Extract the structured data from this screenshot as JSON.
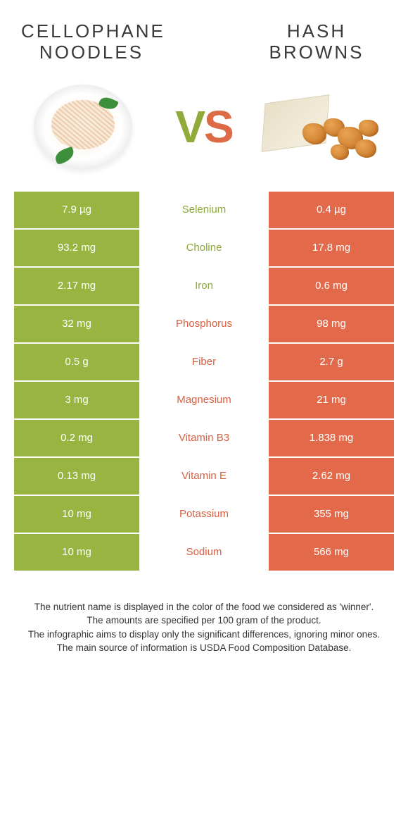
{
  "colors": {
    "left": "#99b441",
    "right": "#e2694a",
    "left_text": "#8ca838",
    "right_text": "#d85f41"
  },
  "food_left": "Cellophane noodles",
  "food_right": "Hash browns",
  "vs": "VS",
  "rows": [
    {
      "nutrient": "Selenium",
      "left": "7.9 µg",
      "right": "0.4 µg",
      "winner": "left"
    },
    {
      "nutrient": "Choline",
      "left": "93.2 mg",
      "right": "17.8 mg",
      "winner": "left"
    },
    {
      "nutrient": "Iron",
      "left": "2.17 mg",
      "right": "0.6 mg",
      "winner": "left"
    },
    {
      "nutrient": "Phosphorus",
      "left": "32 mg",
      "right": "98 mg",
      "winner": "right"
    },
    {
      "nutrient": "Fiber",
      "left": "0.5 g",
      "right": "2.7 g",
      "winner": "right"
    },
    {
      "nutrient": "Magnesium",
      "left": "3 mg",
      "right": "21 mg",
      "winner": "right"
    },
    {
      "nutrient": "Vitamin B3",
      "left": "0.2 mg",
      "right": "1.838 mg",
      "winner": "right"
    },
    {
      "nutrient": "Vitamin E",
      "left": "0.13 mg",
      "right": "2.62 mg",
      "winner": "right"
    },
    {
      "nutrient": "Potassium",
      "left": "10 mg",
      "right": "355 mg",
      "winner": "right"
    },
    {
      "nutrient": "Sodium",
      "left": "10 mg",
      "right": "566 mg",
      "winner": "right"
    }
  ],
  "footnotes": [
    "The nutrient name is displayed in the color of the food we considered as 'winner'.",
    "The amounts are specified per 100 gram of the product.",
    "The infographic aims to display only the significant differences, ignoring minor ones.",
    "The main source of information is USDA Food Composition Database."
  ]
}
